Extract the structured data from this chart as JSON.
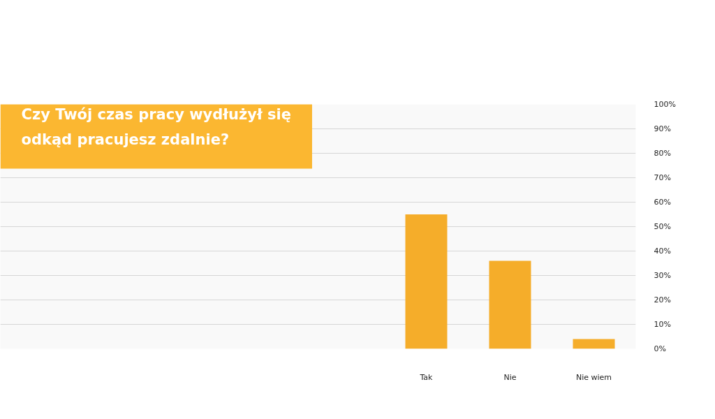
{
  "chart_data": {
    "type": "bar",
    "title": "Czy Twój czas pracy wydłużył się\nodkąd pracujesz zdalnie?",
    "categories": [
      "Tak",
      "Nie",
      "Nie wiem"
    ],
    "values": [
      55,
      36,
      4
    ],
    "color": "#f5ad2a",
    "ylim": [
      0,
      100
    ],
    "yticks": [
      {
        "value": 0,
        "label": "0%"
      },
      {
        "value": 10,
        "label": "10%"
      },
      {
        "value": 20,
        "label": "20%"
      },
      {
        "value": 30,
        "label": "30%"
      },
      {
        "value": 40,
        "label": "40%"
      },
      {
        "value": 50,
        "label": "50%"
      },
      {
        "value": 60,
        "label": "60%"
      },
      {
        "value": 70,
        "label": "70%"
      },
      {
        "value": 80,
        "label": "80%"
      },
      {
        "value": 90,
        "label": "90%"
      },
      {
        "value": 100,
        "label": "100%"
      }
    ],
    "grid": "y"
  }
}
